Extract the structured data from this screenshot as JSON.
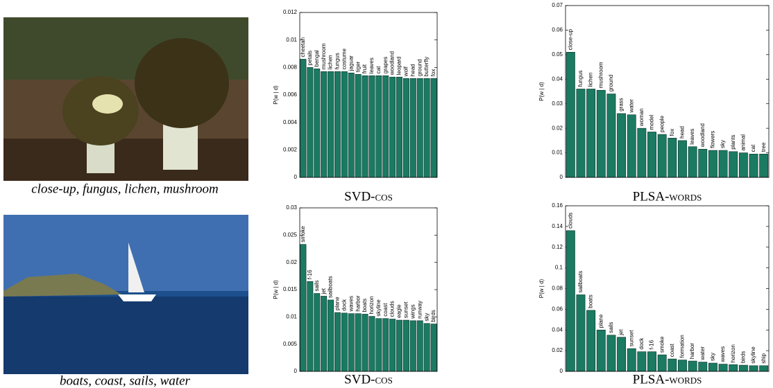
{
  "images": [
    {
      "caption": "close-up, fungus, lichen, mushroom"
    },
    {
      "caption": "boats, coast, sails, water"
    }
  ],
  "chart_data": [
    {
      "type": "bar",
      "title": "SVD-cos",
      "y_label": "P(w | d)",
      "color": "#1b7a62",
      "categories": [
        "cheetah",
        "petals",
        "bengal",
        "mushroom",
        "lichen",
        "fungus",
        "costume",
        "jaguar",
        "tiger",
        "fruit",
        "leaves",
        "cat",
        "grapes",
        "woodland",
        "leopard",
        "wolf",
        "head",
        "ground",
        "butterfly",
        "fox"
      ],
      "values": [
        0.0086,
        0.008,
        0.0079,
        0.0077,
        0.0077,
        0.0077,
        0.0077,
        0.0076,
        0.0075,
        0.0074,
        0.0074,
        0.0074,
        0.0074,
        0.0073,
        0.0073,
        0.0072,
        0.0072,
        0.0072,
        0.0072,
        0.0072
      ],
      "ylim": [
        0,
        0.012
      ],
      "yticks": [
        0,
        0.002,
        0.004,
        0.006,
        0.008,
        0.01,
        0.012
      ]
    },
    {
      "type": "bar",
      "title": "PLSA-words",
      "y_label": "P(w | d)",
      "color": "#1b7a62",
      "categories": [
        "close-up",
        "fungus",
        "lichen",
        "mushroom",
        "ground",
        "grass",
        "water",
        "woman",
        "model",
        "people",
        "fox",
        "head",
        "leaves",
        "woodland",
        "flowers",
        "sky",
        "plants",
        "animal",
        "cat",
        "tree"
      ],
      "values": [
        0.051,
        0.036,
        0.036,
        0.0355,
        0.034,
        0.026,
        0.0255,
        0.02,
        0.0185,
        0.0175,
        0.016,
        0.015,
        0.0125,
        0.0115,
        0.011,
        0.011,
        0.0105,
        0.01,
        0.0095,
        0.0095
      ],
      "ylim": [
        0,
        0.07
      ],
      "yticks": [
        0,
        0.01,
        0.02,
        0.03,
        0.04,
        0.05,
        0.06,
        0.07
      ]
    },
    {
      "type": "bar",
      "title": "SVD-cos",
      "y_label": "P(w | d)",
      "color": "#1b7a62",
      "categories": [
        "smoke",
        "f-16",
        "sails",
        "jet",
        "sailboats",
        "plane",
        "dock",
        "waves",
        "harbor",
        "boats",
        "horizon",
        "skyline",
        "coast",
        "clouds",
        "eagle",
        "sunset",
        "wings",
        "runway",
        "sky",
        "birds"
      ],
      "values": [
        0.0233,
        0.0165,
        0.0143,
        0.0138,
        0.0131,
        0.0108,
        0.0107,
        0.0106,
        0.0106,
        0.0105,
        0.0101,
        0.0097,
        0.0097,
        0.0096,
        0.0094,
        0.0094,
        0.0093,
        0.0093,
        0.0088,
        0.0087
      ],
      "ylim": [
        0,
        0.03
      ],
      "yticks": [
        0,
        0.005,
        0.01,
        0.015,
        0.02,
        0.025,
        0.03
      ]
    },
    {
      "type": "bar",
      "title": "PLSA-words",
      "y_label": "P(w | d)",
      "color": "#1b7a62",
      "categories": [
        "clouds",
        "sailboats",
        "boats",
        "plane",
        "sails",
        "jet",
        "sunset",
        "dock",
        "f-16",
        "smoke",
        "coast",
        "formation",
        "harbor",
        "water",
        "sky",
        "waves",
        "horizon",
        "birds",
        "skyline",
        "ship"
      ],
      "values": [
        0.136,
        0.074,
        0.059,
        0.04,
        0.035,
        0.033,
        0.022,
        0.019,
        0.019,
        0.016,
        0.012,
        0.011,
        0.01,
        0.009,
        0.008,
        0.007,
        0.0065,
        0.006,
        0.0055,
        0.0055
      ],
      "ylim": [
        0,
        0.16
      ],
      "yticks": [
        0,
        0.02,
        0.04,
        0.06,
        0.08,
        0.1,
        0.12,
        0.14,
        0.16
      ]
    }
  ]
}
